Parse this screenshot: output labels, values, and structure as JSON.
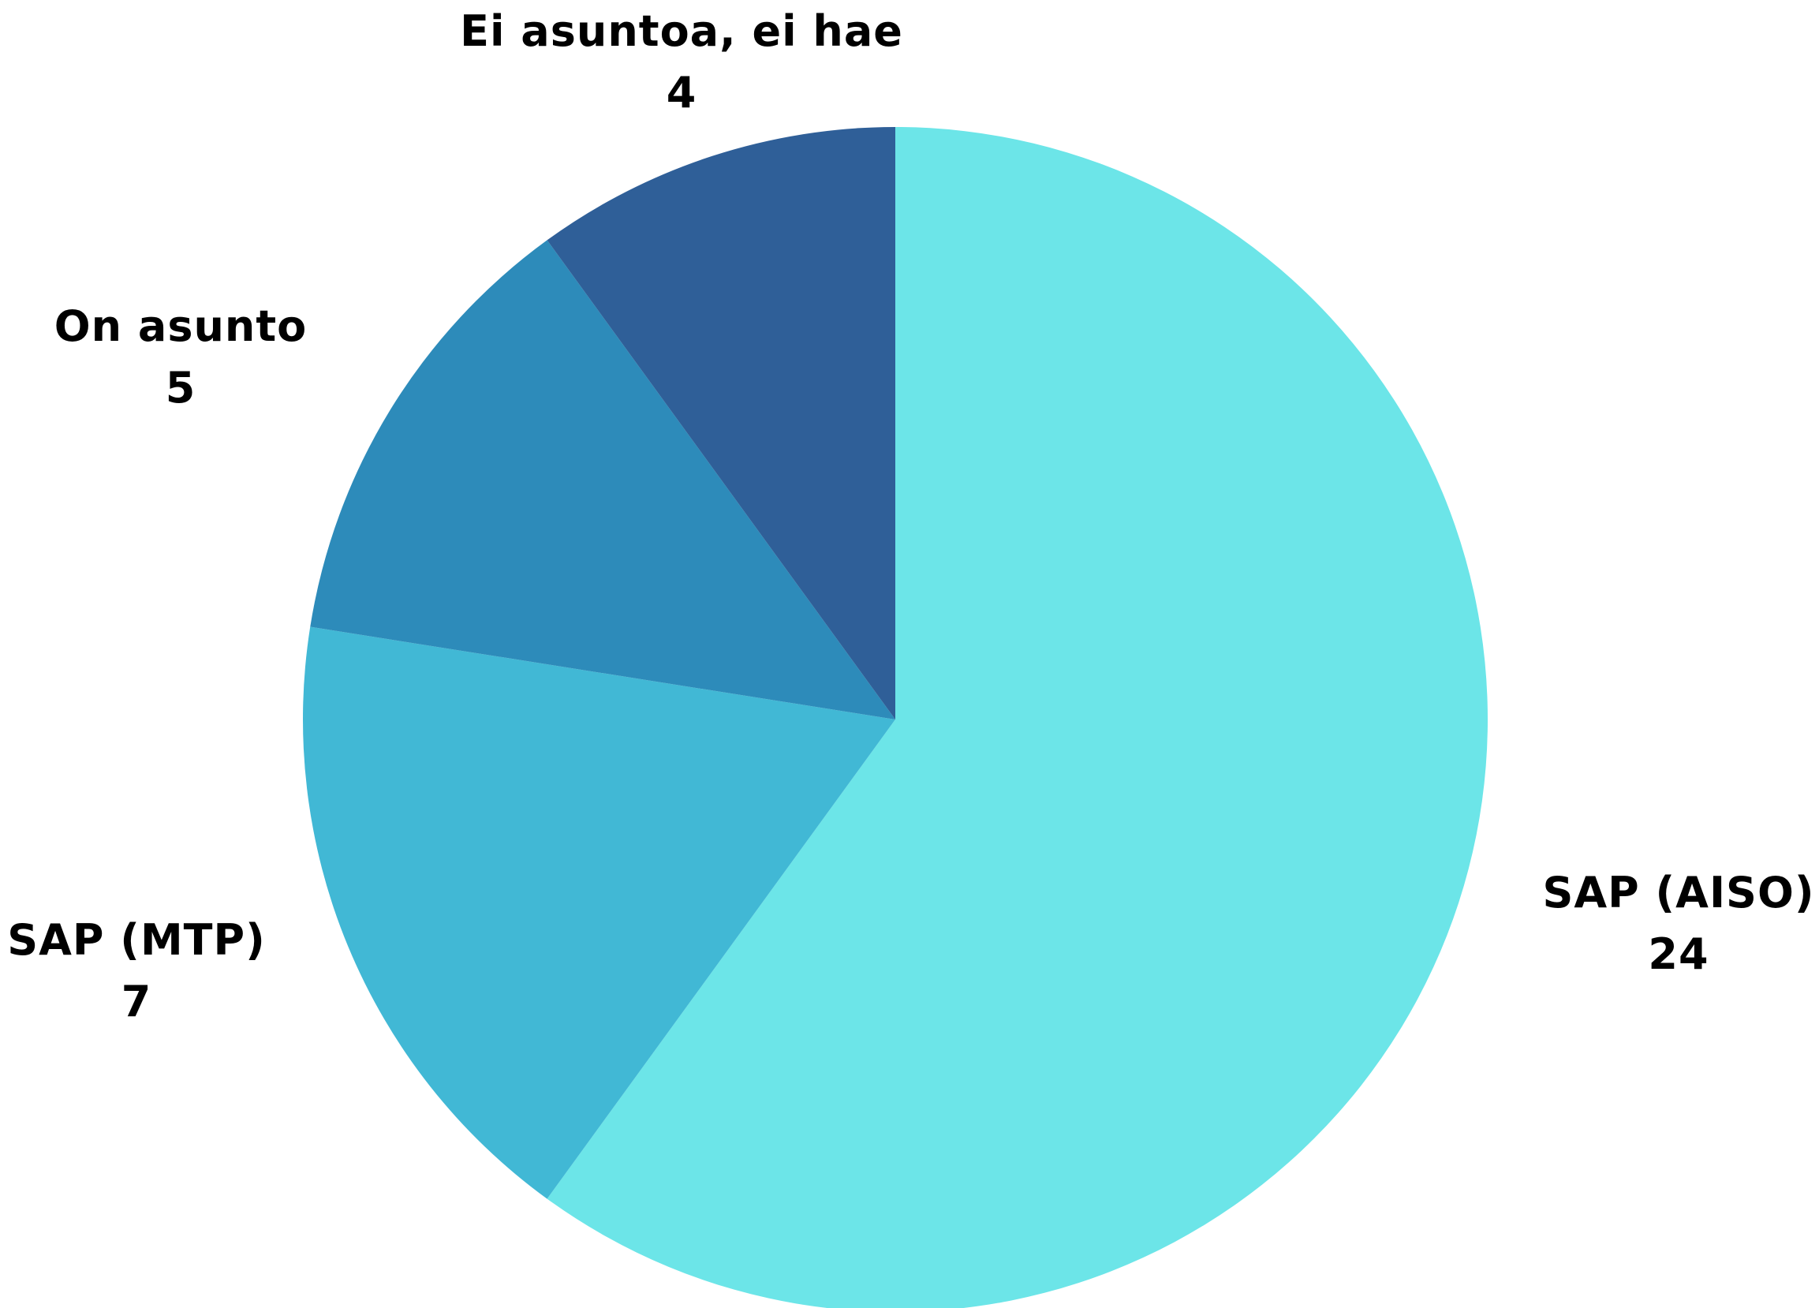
{
  "chart_data": {
    "type": "pie",
    "title": "",
    "slices": [
      {
        "label": "SAP (AISO)",
        "value": 24,
        "color": "#6CE5E8"
      },
      {
        "label": "SAP (MTP)",
        "value": 7,
        "color": "#41B8D5"
      },
      {
        "label": "On asunto",
        "value": 5,
        "color": "#2D8BBA"
      },
      {
        "label": "Ei asuntoa, ei hae",
        "value": 4,
        "color": "#2F5F98"
      }
    ],
    "start": "12 o'clock",
    "direction": "clockwise",
    "legend": "none",
    "data_labels": "outside"
  }
}
